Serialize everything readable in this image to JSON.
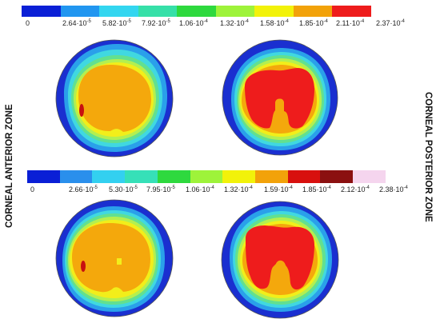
{
  "labels": {
    "left": "CORNEAL ANTERIOR ZONE",
    "right": "CORNEAL  POSTERIOR  ZONE"
  },
  "colorbar_top": {
    "colors": [
      "#0a1fd6",
      "#2196f0",
      "#33d6f0",
      "#36e0a8",
      "#2ed93e",
      "#9ef33a",
      "#f2f20a",
      "#f2a20a",
      "#ee1c1c"
    ],
    "ticks": [
      {
        "base": "0",
        "exp": ""
      },
      {
        "base": "2.64·10",
        "exp": "-5"
      },
      {
        "base": "5.82·10",
        "exp": "-5"
      },
      {
        "base": "7.92·10",
        "exp": "-5"
      },
      {
        "base": "1.06·10",
        "exp": "-4"
      },
      {
        "base": "1.32·10",
        "exp": "-4"
      },
      {
        "base": "1.58·10",
        "exp": "-4"
      },
      {
        "base": "1.85·10",
        "exp": "-4"
      },
      {
        "base": "2.11·10",
        "exp": "-4"
      },
      {
        "base": "2.37·10",
        "exp": "-4"
      }
    ]
  },
  "colorbar_bottom": {
    "colors": [
      "#0a1fd6",
      "#2a8fec",
      "#33d0f0",
      "#36e0b8",
      "#2ed93e",
      "#9ef33a",
      "#f2f20a",
      "#f2a20a",
      "#d8100e",
      "#8b1010",
      "#f5d5ee"
    ],
    "ticks": [
      {
        "base": "0",
        "exp": ""
      },
      {
        "base": "2.66·10",
        "exp": "-5"
      },
      {
        "base": "5.30·10",
        "exp": "-5"
      },
      {
        "base": "7.95·10",
        "exp": "-5"
      },
      {
        "base": "1.06·10",
        "exp": "-4"
      },
      {
        "base": "1.32·10",
        "exp": "-4"
      },
      {
        "base": "1.59·10",
        "exp": "-4"
      },
      {
        "base": "1.85·10",
        "exp": "-4"
      },
      {
        "base": "2.12·10",
        "exp": "-4"
      },
      {
        "base": "2.38·10",
        "exp": "-4"
      }
    ]
  },
  "palette": {
    "blue": "#1a2fd0",
    "lightblue": "#2aa0ea",
    "cyan": "#40d8e0",
    "green": "#62e090",
    "lime": "#b4ef50",
    "yellow": "#f2ee1a",
    "orange": "#f4a80c",
    "red": "#ee1c1c",
    "darkred": "#c81010"
  }
}
